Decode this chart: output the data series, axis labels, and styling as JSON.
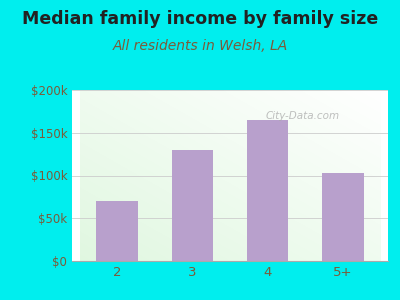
{
  "title": "Median family income by family size",
  "subtitle": "All residents in Welsh, LA",
  "categories": [
    "2",
    "3",
    "4",
    "5+"
  ],
  "values": [
    70000,
    130000,
    165000,
    103000
  ],
  "bar_color": "#b8a0cc",
  "title_fontsize": 12.5,
  "title_fontweight": "bold",
  "title_color": "#222222",
  "subtitle_fontsize": 10,
  "subtitle_color": "#7a5c3a",
  "tick_color": "#7a5c3a",
  "background_outer": "#00EEEE",
  "ylim": [
    0,
    200000
  ],
  "yticks": [
    0,
    50000,
    100000,
    150000,
    200000
  ],
  "ytick_labels": [
    "$0",
    "$50k",
    "$100k",
    "$150k",
    "$200k"
  ],
  "watermark": "City-Data.com",
  "watermark_color": "#aaaaaa",
  "grid_color": "#cccccc"
}
